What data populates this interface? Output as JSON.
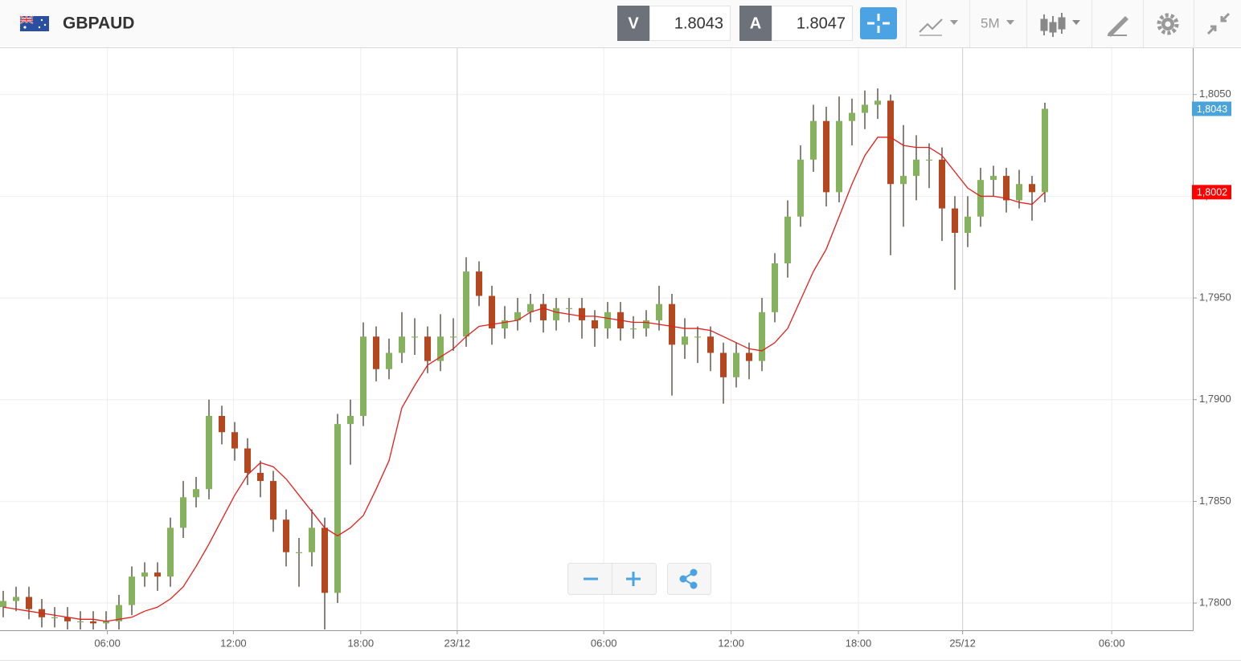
{
  "header": {
    "symbol": "GBPAUD",
    "bid_label": "V",
    "bid": "1.8043",
    "ask_label": "A",
    "ask": "1.8047",
    "timeframe": "5M"
  },
  "chart_data": {
    "type": "candlestick",
    "up_color": "#86b25d",
    "down_color": "#b5471f",
    "wick_color": "#3b3024",
    "open": [
      1.7798,
      1.7801,
      1.7803,
      1.7797,
      1.7793,
      1.7793,
      1.7791,
      1.7791,
      1.779,
      1.7791,
      1.7799,
      1.7813,
      1.7815,
      1.7813,
      1.7837,
      1.7852,
      1.7856,
      1.7892,
      1.7884,
      1.7876,
      1.7864,
      1.786,
      1.7841,
      1.7825,
      1.7825,
      1.7837,
      1.7805,
      1.7888,
      1.7892,
      1.7931,
      1.7915,
      1.7923,
      1.7931,
      1.7931,
      1.7919,
      1.7931,
      1.7931,
      1.7963,
      1.7951,
      1.7935,
      1.7939,
      1.7943,
      1.7947,
      1.7939,
      1.7945,
      1.7945,
      1.7939,
      1.7935,
      1.7943,
      1.7935,
      1.7935,
      1.7939,
      1.7947,
      1.7927,
      1.7931,
      1.7931,
      1.7923,
      1.7911,
      1.7923,
      1.7919,
      1.7943,
      1.7967,
      1.799,
      1.8018,
      1.8037,
      1.8002,
      1.8037,
      1.8041,
      1.8045,
      1.8047,
      1.8006,
      1.801,
      1.8018,
      1.8018,
      1.7994,
      1.7982,
      1.799,
      1.8008,
      1.801,
      1.7998,
      1.8006,
      1.8002
    ],
    "high": [
      1.7806,
      1.7808,
      1.7808,
      1.7802,
      1.7798,
      1.7798,
      1.7796,
      1.7796,
      1.7796,
      1.7804,
      1.7818,
      1.782,
      1.782,
      1.7842,
      1.786,
      1.7862,
      1.79,
      1.7897,
      1.7889,
      1.7881,
      1.787,
      1.7865,
      1.7846,
      1.7832,
      1.7846,
      1.7842,
      1.7893,
      1.79,
      1.7938,
      1.7936,
      1.793,
      1.7943,
      1.794,
      1.7936,
      1.7942,
      1.794,
      1.797,
      1.7968,
      1.7956,
      1.7946,
      1.795,
      1.7952,
      1.7952,
      1.795,
      1.795,
      1.795,
      1.7944,
      1.7948,
      1.7948,
      1.7941,
      1.7944,
      1.7956,
      1.7952,
      1.794,
      1.7936,
      1.7936,
      1.7928,
      1.7928,
      1.7928,
      1.795,
      1.7972,
      1.7998,
      1.8025,
      1.8045,
      1.8044,
      1.8049,
      1.8048,
      1.8052,
      1.8053,
      1.805,
      1.8035,
      1.803,
      1.8026,
      1.8024,
      1.8,
      1.8,
      1.8014,
      1.8015,
      1.8014,
      1.8013,
      1.801,
      1.8046
    ],
    "low": [
      1.7793,
      1.7796,
      1.7792,
      1.7788,
      1.7788,
      1.7787,
      1.7787,
      1.7787,
      1.7787,
      1.7787,
      1.7794,
      1.7808,
      1.7806,
      1.7808,
      1.7832,
      1.7847,
      1.7851,
      1.7878,
      1.787,
      1.7858,
      1.7852,
      1.7835,
      1.7818,
      1.7808,
      1.7818,
      1.7787,
      1.78,
      1.7868,
      1.7887,
      1.7909,
      1.791,
      1.7918,
      1.7922,
      1.7913,
      1.7914,
      1.7924,
      1.7926,
      1.7946,
      1.7927,
      1.793,
      1.7934,
      1.7938,
      1.7933,
      1.7934,
      1.7938,
      1.793,
      1.7926,
      1.793,
      1.7929,
      1.793,
      1.7931,
      1.7934,
      1.7902,
      1.792,
      1.7918,
      1.7914,
      1.7898,
      1.7906,
      1.791,
      1.7914,
      1.7938,
      1.796,
      1.7985,
      1.8012,
      1.7995,
      1.7997,
      1.8025,
      1.8033,
      1.8038,
      1.7971,
      1.7985,
      1.7998,
      1.8004,
      1.7978,
      1.7954,
      1.7975,
      1.7985,
      1.8,
      1.7992,
      1.7994,
      1.7988,
      1.7997
    ],
    "close": [
      1.7801,
      1.7803,
      1.7797,
      1.7793,
      1.7793,
      1.7791,
      1.7791,
      1.779,
      1.7791,
      1.7799,
      1.7813,
      1.7815,
      1.7813,
      1.7837,
      1.7852,
      1.7856,
      1.7892,
      1.7884,
      1.7876,
      1.7864,
      1.786,
      1.7841,
      1.7825,
      1.7825,
      1.7837,
      1.7805,
      1.7888,
      1.7892,
      1.7931,
      1.7915,
      1.7923,
      1.7931,
      1.7931,
      1.7919,
      1.7931,
      1.7931,
      1.7963,
      1.7951,
      1.7935,
      1.7939,
      1.7943,
      1.7947,
      1.7939,
      1.7945,
      1.7945,
      1.7939,
      1.7935,
      1.7943,
      1.7935,
      1.7935,
      1.7939,
      1.7947,
      1.7927,
      1.7931,
      1.7931,
      1.7923,
      1.7911,
      1.7923,
      1.7919,
      1.7943,
      1.7967,
      1.799,
      1.8018,
      1.8037,
      1.8002,
      1.8037,
      1.8041,
      1.8045,
      1.8047,
      1.8006,
      1.801,
      1.8018,
      1.8018,
      1.7994,
      1.7982,
      1.799,
      1.8008,
      1.801,
      1.7998,
      1.8006,
      1.8002,
      1.8043
    ],
    "overlays": [
      {
        "color": "#e0201b",
        "values": [
          1.7798,
          1.7797,
          1.7796,
          1.7795,
          1.7794,
          1.7793,
          1.7792,
          1.7792,
          1.7791,
          1.7792,
          1.7793,
          1.7796,
          1.7798,
          1.7802,
          1.7808,
          1.7818,
          1.7829,
          1.7841,
          1.7853,
          1.7863,
          1.7869,
          1.7867,
          1.7861,
          1.7853,
          1.7845,
          1.7837,
          1.7833,
          1.7837,
          1.7843,
          1.7856,
          1.787,
          1.7896,
          1.7907,
          1.7917,
          1.7921,
          1.7925,
          1.7931,
          1.7936,
          1.7937,
          1.7938,
          1.7939,
          1.7943,
          1.7945,
          1.7943,
          1.7942,
          1.7941,
          1.7941,
          1.794,
          1.7939,
          1.7938,
          1.7938,
          1.7937,
          1.7936,
          1.7935,
          1.7935,
          1.7934,
          1.7931,
          1.7928,
          1.7925,
          1.7924,
          1.7928,
          1.7935,
          1.7949,
          1.7963,
          1.7974,
          1.799,
          1.8006,
          1.802,
          1.8029,
          1.8029,
          1.8025,
          1.8024,
          1.8024,
          1.802,
          1.8012,
          1.8004,
          1.8,
          1.8,
          1.7999,
          1.7997,
          1.7996,
          1.8002
        ]
      }
    ],
    "price_tags": [
      {
        "value": 1.8043,
        "label": "1,8043",
        "color": "#4ba3db"
      },
      {
        "value": 1.8002,
        "label": "1,8002",
        "color": "#ff0000"
      }
    ],
    "xlim": [
      -0.25,
      92.5
    ],
    "xticks": [
      {
        "value": 8.1,
        "label": "06:00"
      },
      {
        "value": 17.9,
        "label": "12:00"
      },
      {
        "value": 27.8,
        "label": "18:00"
      },
      {
        "value": 35.3,
        "label": "23/12"
      },
      {
        "value": 46.7,
        "label": "06:00"
      },
      {
        "value": 56.6,
        "label": "12:00"
      },
      {
        "value": 66.5,
        "label": "18:00"
      },
      {
        "value": 74.6,
        "label": "25/12"
      },
      {
        "value": 86.2,
        "label": "06:00"
      }
    ],
    "ylim": [
      1.77866,
      1.80728
    ],
    "yticks": [
      {
        "value": 1.78,
        "label": "1,7800"
      },
      {
        "value": 1.785,
        "label": "1,7850"
      },
      {
        "value": 1.79,
        "label": "1,7900"
      },
      {
        "value": 1.795,
        "label": "1,7950"
      },
      {
        "value": 1.8,
        "label": "1,8000"
      },
      {
        "value": 1.805,
        "label": "1,8050"
      }
    ],
    "grid": true
  }
}
